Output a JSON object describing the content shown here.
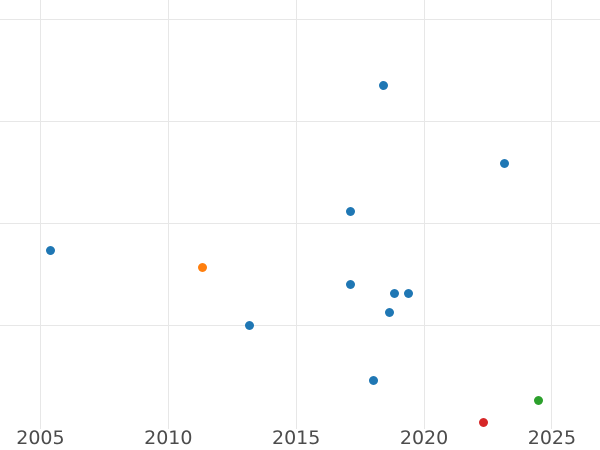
{
  "chart_data": {
    "type": "scatter",
    "title": "",
    "xlabel": "",
    "ylabel": "",
    "x_tick_labels": [
      "2005",
      "2010",
      "2015",
      "2020",
      "2025"
    ],
    "x_ticks": [
      2005,
      2010,
      2015,
      2020,
      2025
    ],
    "xlim": [
      2003.42,
      2026.88
    ],
    "y_tick_labels_visible": false,
    "y_gridlines_visible": 4,
    "y_unit": "gridline-intervals (y-axis labels cropped out of view)",
    "ylim": [
      0,
      4.19
    ],
    "grid": true,
    "legend": "none",
    "background_color": "#ffffff",
    "gridline_color": "#e7e7e7",
    "tick_label_color": "#4c4c4c",
    "point_colors": {
      "blue": "#1f77b4",
      "orange": "#ff7f0e",
      "green": "#2ca02c",
      "red": "#d62728"
    },
    "points": [
      {
        "x": 2005.41,
        "y": 1.73,
        "color": "blue"
      },
      {
        "x": 2011.32,
        "y": 1.57,
        "color": "orange"
      },
      {
        "x": 2013.16,
        "y": 1.0,
        "color": "blue"
      },
      {
        "x": 2017.13,
        "y": 2.12,
        "color": "blue"
      },
      {
        "x": 2017.13,
        "y": 1.4,
        "color": "blue"
      },
      {
        "x": 2018.04,
        "y": 0.46,
        "color": "blue"
      },
      {
        "x": 2018.42,
        "y": 3.35,
        "color": "blue"
      },
      {
        "x": 2018.64,
        "y": 1.13,
        "color": "blue"
      },
      {
        "x": 2018.84,
        "y": 1.31,
        "color": "blue"
      },
      {
        "x": 2019.41,
        "y": 1.31,
        "color": "blue"
      },
      {
        "x": 2022.32,
        "y": 0.05,
        "color": "red"
      },
      {
        "x": 2023.15,
        "y": 2.59,
        "color": "blue"
      },
      {
        "x": 2024.47,
        "y": 0.26,
        "color": "green"
      }
    ]
  }
}
